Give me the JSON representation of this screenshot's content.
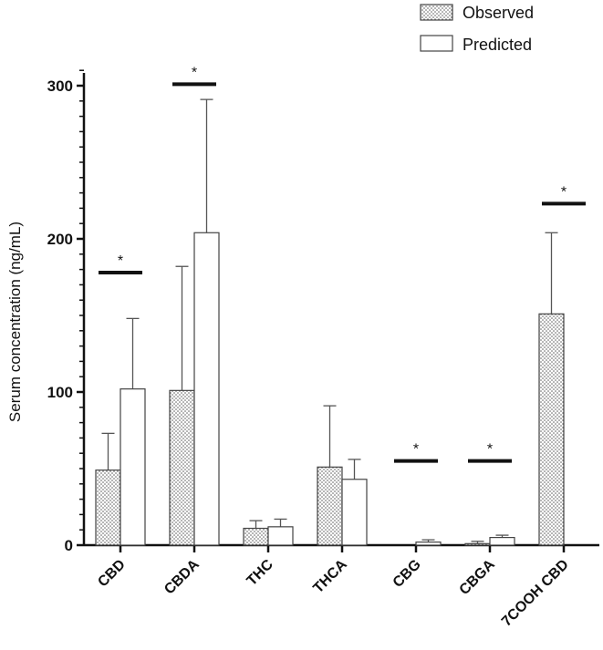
{
  "chart_data": {
    "type": "bar",
    "title": "",
    "xlabel": "",
    "ylabel": "Serum concentration (ng/mL)",
    "ylim": [
      0,
      310
    ],
    "yticks": [
      0,
      100,
      200,
      300
    ],
    "categories": [
      "CBD",
      "CBDA",
      "THC",
      "THCA",
      "CBG",
      "CBGA",
      "7COOH CBD"
    ],
    "series": [
      {
        "name": "Observed",
        "pattern": "dotted",
        "values": [
          49,
          101,
          11,
          51,
          0,
          1,
          151
        ],
        "error": [
          24,
          81,
          5,
          40,
          0,
          1.5,
          53
        ]
      },
      {
        "name": "Predicted",
        "pattern": "white",
        "values": [
          102,
          204,
          12,
          43,
          2,
          5,
          0
        ],
        "error": [
          46,
          87,
          5,
          13,
          1.5,
          1.5,
          0
        ]
      }
    ],
    "significance": [
      {
        "category": "CBD",
        "label": "*",
        "y": 178
      },
      {
        "category": "CBDA",
        "label": "*",
        "y": 301
      },
      {
        "category": "CBG",
        "label": "*",
        "y": 55
      },
      {
        "category": "CBGA",
        "label": "*",
        "y": 55
      },
      {
        "category": "7COOH CBD",
        "label": "*",
        "y": 223
      }
    ],
    "legend": {
      "position": "top-right",
      "entries": [
        "Observed",
        "Predicted"
      ]
    },
    "colors": {
      "axis": "#111111",
      "bar_stroke": "#444444",
      "dot_fill": "#555555",
      "background": "#ffffff"
    }
  }
}
